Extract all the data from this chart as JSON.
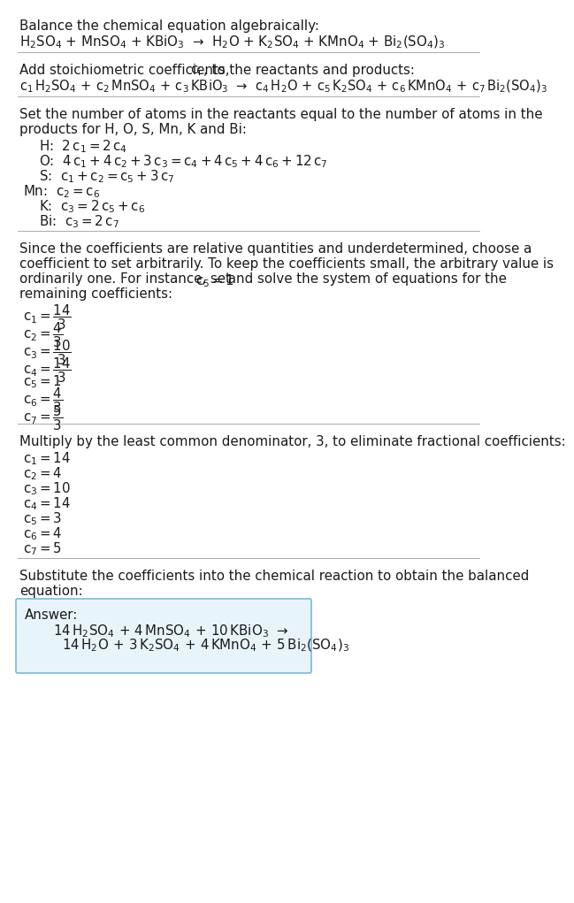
{
  "bg_color": "#ffffff",
  "text_color": "#000000",
  "font_size": 11,
  "answer_box_color": "#e8f4fb",
  "answer_box_edge": "#5b9bd5",
  "sections": [
    {
      "type": "text_block",
      "lines": [
        {
          "text": "Balance the chemical equation algebraically:",
          "style": "normal"
        },
        {
          "text": "H_2SO_4 + MnSO_4 + KBiO_3  →  H_2O + K_2SO_4 + KMnO_4 + Bi_2(SO_4)_3",
          "style": "formula"
        }
      ]
    },
    {
      "type": "divider"
    },
    {
      "type": "text_block",
      "lines": [
        {
          "text": "Add stoichiometric coefficients, c_i, to the reactants and products:",
          "style": "normal_ci"
        },
        {
          "text": "c_1 H_2SO_4 + c_2 MnSO_4 + c_3 KBiO_3  →  c_4 H_2O + c_5 K_2SO_4 + c_6 KMnO_4 + c_7 Bi_2(SO_4)_3",
          "style": "formula_c"
        }
      ]
    },
    {
      "type": "divider"
    },
    {
      "type": "text_block",
      "lines": [
        {
          "text": "Set the number of atoms in the reactants equal to the number of atoms in the",
          "style": "normal"
        },
        {
          "text": "products for H, O, S, Mn, K and Bi:",
          "style": "normal"
        },
        {
          "text": "H:  2 c_1 = 2 c_4",
          "style": "equation",
          "indent": 1
        },
        {
          "text": "O:  4 c_1 + 4 c_2 + 3 c_3 = c_4 + 4 c_5 + 4 c_6 + 12 c_7",
          "style": "equation",
          "indent": 1
        },
        {
          "text": "S:  c_1 + c_2 = c_5 + 3 c_7",
          "style": "equation",
          "indent": 1
        },
        {
          "text": "Mn:  c_2 = c_6",
          "style": "equation",
          "indent": 0
        },
        {
          "text": "K:  c_3 = 2 c_5 + c_6",
          "style": "equation",
          "indent": 1
        },
        {
          "text": "Bi:  c_3 = 2 c_7",
          "style": "equation",
          "indent": 1
        }
      ]
    },
    {
      "type": "divider"
    },
    {
      "type": "text_block",
      "lines": [
        {
          "text": "Since the coefficients are relative quantities and underdetermined, choose a",
          "style": "normal"
        },
        {
          "text": "coefficient to set arbitrarily. To keep the coefficients small, the arbitrary value is",
          "style": "normal"
        },
        {
          "text": "ordinarily one. For instance, set c_5 = 1 and solve the system of equations for the",
          "style": "normal_ci"
        },
        {
          "text": "remaining coefficients:",
          "style": "normal"
        },
        {
          "text": "c_1 = 14/3",
          "style": "coeff"
        },
        {
          "text": "c_2 = 4/3",
          "style": "coeff"
        },
        {
          "text": "c_3 = 10/3",
          "style": "coeff"
        },
        {
          "text": "c_4 = 14/3",
          "style": "coeff"
        },
        {
          "text": "c_5 = 1",
          "style": "coeff"
        },
        {
          "text": "c_6 = 4/3",
          "style": "coeff"
        },
        {
          "text": "c_7 = 5/3",
          "style": "coeff"
        }
      ]
    },
    {
      "type": "divider"
    },
    {
      "type": "text_block",
      "lines": [
        {
          "text": "Multiply by the least common denominator, 3, to eliminate fractional coefficients:",
          "style": "normal"
        },
        {
          "text": "c_1 = 14",
          "style": "coeff"
        },
        {
          "text": "c_2 = 4",
          "style": "coeff"
        },
        {
          "text": "c_3 = 10",
          "style": "coeff"
        },
        {
          "text": "c_4 = 14",
          "style": "coeff"
        },
        {
          "text": "c_5 = 3",
          "style": "coeff"
        },
        {
          "text": "c_6 = 4",
          "style": "coeff"
        },
        {
          "text": "c_7 = 5",
          "style": "coeff"
        }
      ]
    },
    {
      "type": "divider"
    },
    {
      "type": "text_block",
      "lines": [
        {
          "text": "Substitute the coefficients into the chemical reaction to obtain the balanced",
          "style": "normal"
        },
        {
          "text": "equation:",
          "style": "normal"
        }
      ]
    },
    {
      "type": "answer_box",
      "lines": [
        {
          "text": "Answer:",
          "style": "answer_label"
        },
        {
          "text": "14 H_2SO_4 + 4 MnSO_4 + 10 KBiO_3  →",
          "style": "answer_formula"
        },
        {
          "text": "14 H_2O + 3 K_2SO_4 + 4 KMnO_4 + 5 Bi_2(SO_4)_3",
          "style": "answer_formula"
        }
      ]
    }
  ]
}
